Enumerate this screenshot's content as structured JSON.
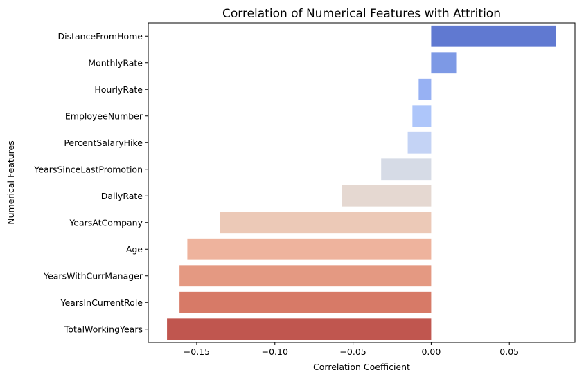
{
  "chart_data": {
    "type": "bar",
    "orientation": "horizontal",
    "title": "Correlation of Numerical Features with Attrition",
    "xlabel": "Correlation Coefficient",
    "ylabel": "Numerical Features",
    "categories": [
      "DistanceFromHome",
      "MonthlyRate",
      "HourlyRate",
      "EmployeeNumber",
      "PercentSalaryHike",
      "YearsSinceLastPromotion",
      "DailyRate",
      "YearsAtCompany",
      "Age",
      "YearsWithCurrManager",
      "YearsInCurrentRole",
      "TotalWorkingYears"
    ],
    "values": [
      0.08,
      0.016,
      -0.008,
      -0.012,
      -0.015,
      -0.032,
      -0.057,
      -0.135,
      -0.156,
      -0.161,
      -0.161,
      -0.169
    ],
    "colors": [
      "#6079d1",
      "#7d99e5",
      "#97b1f3",
      "#aec6fa",
      "#c4d3f5",
      "#d6dbe6",
      "#e5d8d1",
      "#ecc9b7",
      "#eeb39d",
      "#e49982",
      "#d77a67",
      "#c0564f"
    ],
    "xlim": [
      -0.181,
      0.092
    ],
    "xticks": [
      -0.15,
      -0.1,
      -0.05,
      0.0,
      0.05
    ],
    "xtick_labels": [
      "−0.15",
      "−0.10",
      "−0.05",
      "0.00",
      "0.05"
    ],
    "grid": false,
    "legend": "none"
  }
}
